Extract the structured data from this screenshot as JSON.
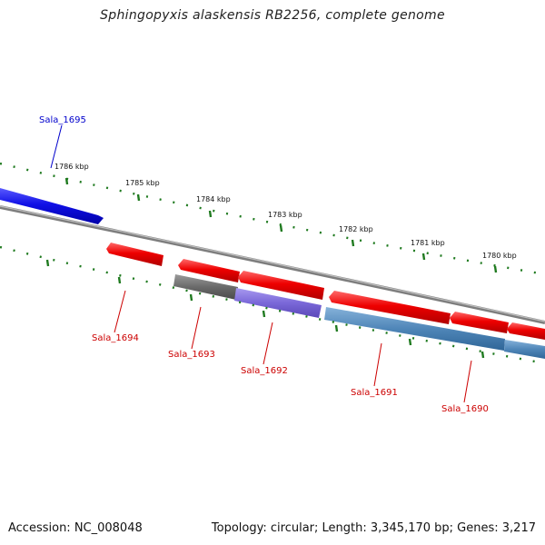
{
  "title": "Sphingopyxis alaskensis RB2256, complete genome",
  "ticks": [
    "1786 kbp",
    "1785 kbp",
    "1784 kbp",
    "1783 kbp",
    "1782 kbp",
    "1781 kbp",
    "1780 kbp"
  ],
  "genes": {
    "top": "Sala_1695",
    "bottom": [
      "Sala_1694",
      "Sala_1693",
      "Sala_1692",
      "Sala_1691",
      "Sala_1690"
    ]
  },
  "footer": {
    "accession": "Accession: NC_008048",
    "stats": "Topology: circular; Length: 3,345,170 bp; Genes: 3,217"
  },
  "colors": {
    "forward_gene": "#1010e6",
    "reverse_gene": "#e60000",
    "label_forward": "#0000cc",
    "label_reverse": "#cc0000",
    "tick": "#1f7a1f",
    "backbone": "#888888",
    "gene_gray": "#6f6f6f",
    "gene_purple": "#7a68d8",
    "gene_steelblue": "#4f86b8"
  }
}
